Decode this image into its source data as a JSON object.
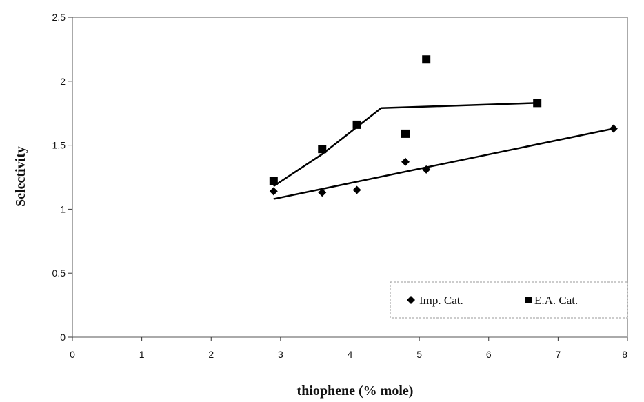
{
  "chart_data": {
    "type": "scatter",
    "title": "",
    "xlabel": "thiophene (% mole)",
    "ylabel": "Selectivity",
    "xlim": [
      0,
      8
    ],
    "ylim": [
      0,
      2.5
    ],
    "x_ticks": [
      "0",
      "1",
      "2",
      "3",
      "4",
      "5",
      "6",
      "7",
      "8"
    ],
    "y_ticks": [
      "0",
      "0.5",
      "1",
      "1.5",
      "2",
      "2.5"
    ],
    "grid": false,
    "legend_position": "bottom-right",
    "series": [
      {
        "name": "Imp. Cat.",
        "marker": "diamond",
        "color": "#000000",
        "points": [
          [
            2.9,
            1.14
          ],
          [
            3.6,
            1.13
          ],
          [
            4.1,
            1.15
          ],
          [
            4.8,
            1.37
          ],
          [
            5.1,
            1.31
          ],
          [
            7.8,
            1.63
          ]
        ],
        "trend": [
          [
            2.9,
            1.08
          ],
          [
            7.8,
            1.63
          ]
        ]
      },
      {
        "name": "E.A. Cat.",
        "marker": "square",
        "color": "#000000",
        "points": [
          [
            2.9,
            1.22
          ],
          [
            3.6,
            1.47
          ],
          [
            4.1,
            1.66
          ],
          [
            4.8,
            1.59
          ],
          [
            5.1,
            2.17
          ],
          [
            6.7,
            1.83
          ]
        ],
        "trend": [
          [
            2.9,
            1.18
          ],
          [
            3.6,
            1.43
          ],
          [
            4.45,
            1.79
          ],
          [
            6.7,
            1.83
          ]
        ]
      }
    ]
  }
}
